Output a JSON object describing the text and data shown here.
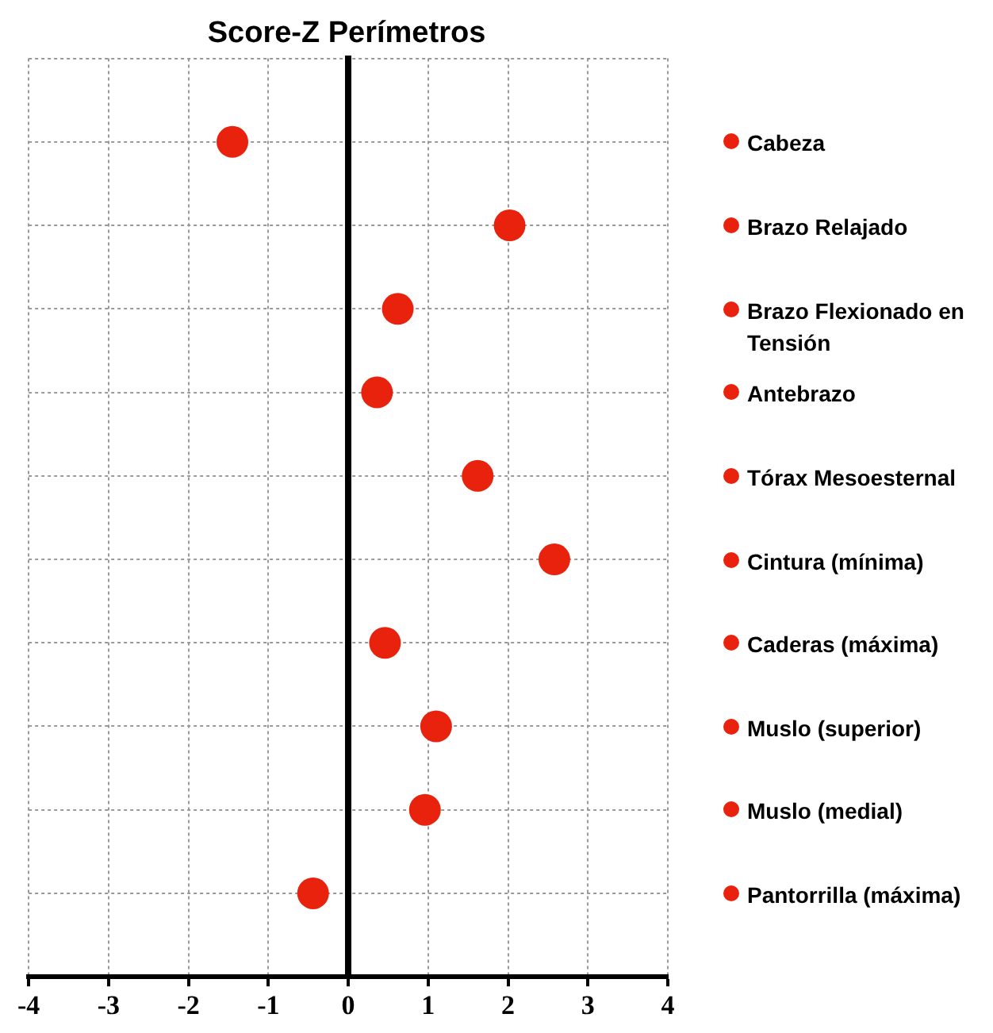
{
  "chart_data": {
    "type": "scatter",
    "orientation": "horizontal",
    "title": "Score-Z Perímetros",
    "categories": [
      null,
      null,
      null,
      null,
      null,
      null,
      null,
      null,
      null,
      null
    ],
    "series": [
      {
        "name": "Cabeza",
        "color": "#e8220c",
        "values": [
          -1.45,
          null,
          null,
          null,
          null,
          null,
          null,
          null,
          null,
          null
        ]
      },
      {
        "name": "Brazo Relajado",
        "color": "#e8220c",
        "values": [
          null,
          2.02,
          null,
          null,
          null,
          null,
          null,
          null,
          null,
          null
        ]
      },
      {
        "name": "Brazo Flexionado en Tensión",
        "color": "#e8220c",
        "values": [
          null,
          null,
          0.62,
          null,
          null,
          null,
          null,
          null,
          null,
          null
        ]
      },
      {
        "name": "Antebrazo",
        "color": "#e8220c",
        "values": [
          null,
          null,
          null,
          0.36,
          null,
          null,
          null,
          null,
          null,
          null
        ]
      },
      {
        "name": "Tórax Mesoesternal",
        "color": "#e8220c",
        "values": [
          null,
          null,
          null,
          null,
          1.62,
          null,
          null,
          null,
          null,
          null
        ]
      },
      {
        "name": "Cintura (mínima)",
        "color": "#e8220c",
        "values": [
          null,
          null,
          null,
          null,
          null,
          2.58,
          null,
          null,
          null,
          null
        ]
      },
      {
        "name": "Caderas (máxima)",
        "color": "#e8220c",
        "values": [
          null,
          null,
          null,
          null,
          null,
          null,
          0.46,
          null,
          null,
          null
        ]
      },
      {
        "name": "Muslo (superior)",
        "color": "#e8220c",
        "values": [
          null,
          null,
          null,
          null,
          null,
          null,
          null,
          1.1,
          null,
          null
        ]
      },
      {
        "name": "Muslo (medial)",
        "color": "#e8220c",
        "values": [
          null,
          null,
          null,
          null,
          null,
          null,
          null,
          null,
          0.96,
          null
        ]
      },
      {
        "name": "Pantorrilla (máxima)",
        "color": "#e8220c",
        "values": [
          null,
          null,
          null,
          null,
          null,
          null,
          null,
          null,
          null,
          -0.44
        ]
      }
    ],
    "xlim": [
      -4,
      4
    ],
    "xticks": [
      -4,
      -3,
      -2,
      -1,
      0,
      1,
      2,
      3,
      4
    ],
    "grid": true,
    "legend": "right",
    "marker": "circle",
    "tick_labels": "x"
  }
}
